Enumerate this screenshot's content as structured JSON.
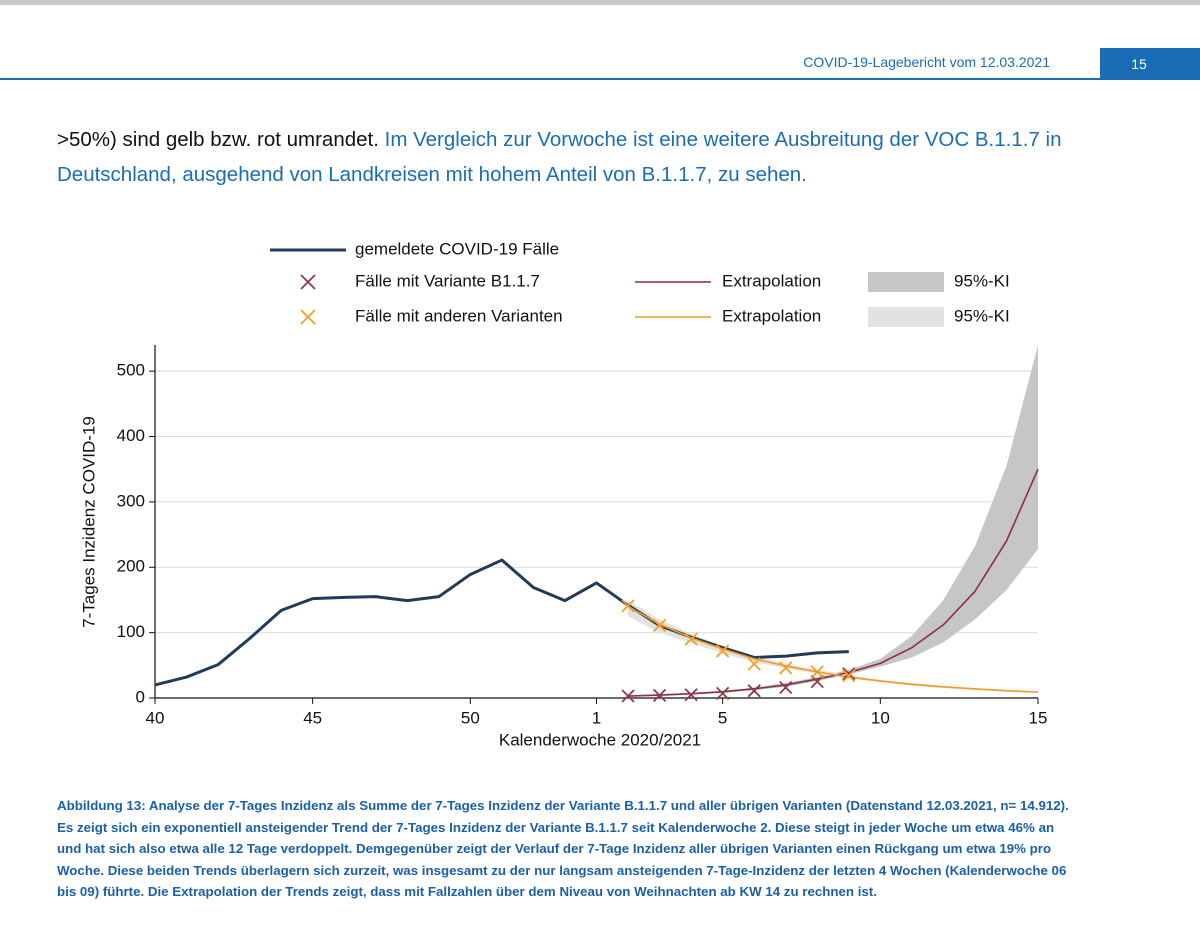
{
  "header": {
    "title": "COVID-19-Lagebericht vom 12.03.2021",
    "page": "15"
  },
  "paragraph": {
    "parts": [
      ">50%) sind gelb bzw. rot umrandet.",
      "Im Vergleich zur Vorwoche ist eine weitere Ausbreitung der VOC B.1.1.7 in Deutschland, ausgehend von Landkreisen mit hohem Anteil von B.1.1.7, zu sehen."
    ]
  },
  "chart_data": {
    "type": "line",
    "x_label": "Kalenderwoche 2020/2021",
    "y_label": "7-Tages Inzidenz COVID-19",
    "categories": [
      "40",
      null,
      null,
      null,
      null,
      "45",
      null,
      null,
      null,
      null,
      "50",
      null,
      null,
      null,
      "1",
      null,
      null,
      null,
      "5",
      null,
      null,
      null,
      null,
      "10",
      null,
      null,
      null,
      null,
      "15"
    ],
    "ylim": [
      0,
      540
    ],
    "yticks": [
      0,
      100,
      200,
      300,
      400,
      500
    ],
    "grid": true,
    "series": [
      {
        "name": "gemeldete COVID-19 Fälle",
        "kind": "line",
        "color": "#1f3b57",
        "values": [
          20,
          32,
          51,
          91,
          134,
          152,
          154,
          155,
          149,
          155,
          189,
          211,
          169,
          149,
          176,
          142,
          111,
          93,
          77,
          62,
          64,
          69,
          71,
          null,
          null,
          null,
          null,
          null,
          null
        ]
      },
      {
        "name": "Fälle mit Variante B1.1.7",
        "kind": "marker",
        "color": "#8c3b4b",
        "values": [
          null,
          null,
          null,
          null,
          null,
          null,
          null,
          null,
          null,
          null,
          null,
          null,
          null,
          null,
          null,
          3,
          4,
          5,
          7,
          11,
          16,
          25,
          37,
          null,
          null,
          null,
          null,
          null,
          null
        ]
      },
      {
        "name": "Extrapolation",
        "kind": "line",
        "color": "#8c2f3f",
        "values": [
          null,
          null,
          null,
          null,
          null,
          null,
          null,
          null,
          null,
          null,
          null,
          null,
          null,
          null,
          null,
          3,
          4.5,
          6.5,
          9.5,
          14,
          20,
          29,
          39,
          53,
          77,
          112,
          163,
          240,
          350
        ]
      },
      {
        "name": "95%-KI",
        "kind": "band",
        "color": "#c6c6c6",
        "lower": [
          null,
          null,
          null,
          null,
          null,
          null,
          null,
          null,
          null,
          null,
          null,
          null,
          null,
          null,
          null,
          2,
          3,
          5,
          8,
          12,
          17,
          26,
          36,
          48,
          62,
          85,
          120,
          165,
          228
        ],
        "upper": [
          null,
          null,
          null,
          null,
          null,
          null,
          null,
          null,
          null,
          null,
          null,
          null,
          null,
          null,
          null,
          4,
          6,
          8,
          11,
          16,
          23,
          32,
          43,
          60,
          95,
          150,
          232,
          355,
          540
        ]
      },
      {
        "name": "Fälle mit anderen Varianten",
        "kind": "marker",
        "color": "#f5a025",
        "values": [
          null,
          null,
          null,
          null,
          null,
          null,
          null,
          null,
          null,
          null,
          null,
          null,
          null,
          null,
          null,
          141,
          111,
          90,
          72,
          52,
          46,
          40,
          34,
          null,
          null,
          null,
          null,
          null,
          null
        ]
      },
      {
        "name": "Extrapolation",
        "kind": "line",
        "color": "#f39c1f",
        "values": [
          null,
          null,
          null,
          null,
          null,
          null,
          null,
          null,
          null,
          null,
          null,
          null,
          null,
          null,
          null,
          140,
          113,
          92,
          75,
          60,
          49,
          40,
          32,
          26,
          21,
          17,
          14,
          11,
          9
        ]
      },
      {
        "name": "95%-KI",
        "kind": "band",
        "color": "#e2e2e2",
        "lower": [
          null,
          null,
          null,
          null,
          null,
          null,
          null,
          null,
          null,
          null,
          null,
          null,
          null,
          null,
          null,
          125,
          100,
          84,
          68,
          55,
          45,
          37,
          30,
          24,
          19,
          15,
          12,
          10,
          8
        ],
        "upper": [
          null,
          null,
          null,
          null,
          null,
          null,
          null,
          null,
          null,
          null,
          null,
          null,
          null,
          null,
          null,
          150,
          120,
          98,
          80,
          64,
          52,
          43,
          35,
          28,
          23,
          19,
          15,
          13,
          11
        ]
      }
    ]
  },
  "caption": "Abbildung 13: Analyse der 7-Tages Inzidenz als Summe der 7-Tages Inzidenz der Variante B.1.1.7 und aller übrigen Varianten (Datenstand 12.03.2021, n= 14.912).  Es zeigt sich ein exponentiell ansteigender Trend der 7-Tages Inzidenz der Variante B.1.1.7 seit Kalenderwoche 2. Diese steigt in jeder Woche um etwa 46% an und hat sich also etwa alle 12 Tage verdoppelt. Demgegenüber zeigt der Verlauf der 7-Tage Inzidenz aller übrigen Varianten einen Rückgang um etwa 19% pro Woche. Diese beiden Trends überlagern sich zurzeit, was insgesamt zu der nur langsam ansteigenden 7-Tage-Inzidenz der letzten 4 Wochen (Kalenderwoche 06 bis 09) führte. Die Extrapolation der Trends zeigt, dass mit Fallzahlen über dem Niveau von Weihnachten ab KW 14 zu rechnen ist."
}
